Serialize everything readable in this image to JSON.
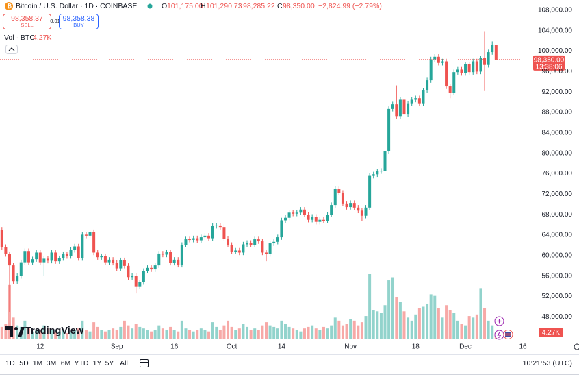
{
  "chart_data": {
    "type": "candlestick",
    "title": "Bitcoin / U.S. Dollar · 1D · COINBASE",
    "ohlc_legend": [
      {
        "key": "O",
        "value": "101,175.00"
      },
      {
        "key": "H",
        "value": "101,290.73"
      },
      {
        "key": "L",
        "value": "98,285.22"
      },
      {
        "key": "C",
        "value": "98,350.00"
      }
    ],
    "change": "−2,824.99 (−2.79%)",
    "sell": {
      "price": "98,358.37",
      "label": "SELL"
    },
    "spread": "0.01",
    "buy": {
      "price": "98,358.38",
      "label": "BUY"
    },
    "volume_legend": {
      "name": "Vol · BTC",
      "value": "4.27K"
    },
    "categories": [
      null,
      null,
      null,
      null,
      null,
      null,
      null,
      null,
      null,
      null,
      "12",
      null,
      null,
      null,
      null,
      null,
      null,
      null,
      null,
      null,
      null,
      null,
      null,
      null,
      null,
      null,
      null,
      null,
      null,
      null,
      "Sep",
      null,
      null,
      null,
      null,
      null,
      null,
      null,
      null,
      null,
      null,
      null,
      null,
      null,
      null,
      "16",
      null,
      null,
      null,
      null,
      null,
      null,
      null,
      null,
      null,
      null,
      null,
      null,
      null,
      null,
      "Oct",
      null,
      null,
      null,
      null,
      null,
      null,
      null,
      null,
      null,
      null,
      null,
      null,
      "14",
      null,
      null,
      null,
      null,
      null,
      null,
      null,
      null,
      null,
      null,
      null,
      null,
      null,
      null,
      null,
      null,
      null,
      "Nov",
      null,
      null,
      null,
      null,
      null,
      null,
      null,
      null,
      null,
      null,
      null,
      null,
      null,
      null,
      null,
      null,
      "18",
      null,
      null,
      null,
      null,
      null,
      null,
      null,
      null,
      null,
      null,
      null,
      null,
      "Dec",
      null,
      null,
      null,
      null,
      null,
      null,
      null,
      null,
      null,
      null,
      null,
      null,
      null,
      null,
      "16",
      null,
      null
    ],
    "open": [
      65000,
      61700,
      60300,
      58100,
      55000,
      56000,
      58700,
      60900,
      58700,
      59300,
      60600,
      58700,
      59400,
      59000,
      60600,
      58900,
      59500,
      60300,
      59900,
      61100,
      61800,
      59500,
      64100,
      63900,
      64600,
      60600,
      59700,
      59900,
      58700,
      59200,
      58600,
      57500,
      59100,
      58000,
      55800,
      56100,
      54000,
      54800,
      57000,
      57600,
      57300,
      58100,
      60400,
      60200,
      60700,
      58600,
      59200,
      58200,
      62100,
      63200,
      63100,
      63400,
      63000,
      63600,
      63900,
      63400,
      65800,
      65900,
      65600,
      63300,
      62100,
      60800,
      61000,
      60600,
      62200,
      62500,
      62100,
      63200,
      62800,
      60600,
      60300,
      62400,
      62700,
      63600,
      66900,
      67400,
      68400,
      68200,
      68400,
      69000,
      68000,
      67000,
      67600,
      66600,
      67000,
      66800,
      68000,
      69900,
      73000,
      72300,
      70200,
      69500,
      70300,
      69400,
      68800,
      67800,
      69400,
      75600,
      75900,
      76500,
      76600,
      80400,
      88700,
      89600,
      87300,
      90500,
      87600,
      89800,
      90500,
      90800,
      89800,
      92300,
      94300,
      98400,
      98900,
      97700,
      98000,
      93100,
      91900,
      95900,
      96400,
      95700,
      97400,
      95900,
      98000,
      96000,
      98600,
      97300,
      99800,
      101175,
      null,
      null,
      null,
      null,
      null,
      null,
      null,
      null,
      null
    ],
    "high": [
      65600,
      62200,
      60800,
      58600,
      56500,
      59200,
      61400,
      61400,
      59800,
      61100,
      61100,
      59900,
      59900,
      61100,
      61100,
      60000,
      60800,
      60800,
      61600,
      62300,
      62300,
      64600,
      64600,
      65100,
      65100,
      61100,
      60400,
      60400,
      59700,
      59700,
      59100,
      59600,
      59600,
      58500,
      56600,
      56600,
      55300,
      57500,
      58100,
      58100,
      58600,
      60900,
      60900,
      61200,
      61200,
      59700,
      59700,
      62600,
      63700,
      63700,
      63900,
      63900,
      64100,
      64400,
      64400,
      66300,
      66400,
      66400,
      66100,
      63800,
      62600,
      61500,
      61500,
      62700,
      63000,
      63000,
      63700,
      63700,
      63300,
      61100,
      62900,
      63200,
      64100,
      67400,
      67900,
      68900,
      68900,
      68900,
      69500,
      69500,
      68500,
      68100,
      68100,
      67500,
      67500,
      68500,
      70400,
      73600,
      73500,
      72800,
      70700,
      70800,
      70800,
      69900,
      69300,
      69900,
      76100,
      76400,
      77000,
      77100,
      80900,
      89200,
      90100,
      93300,
      91000,
      91000,
      90300,
      91000,
      91300,
      91300,
      92800,
      94800,
      98900,
      99400,
      99400,
      98500,
      98500,
      93600,
      96400,
      96900,
      96900,
      97900,
      97900,
      98500,
      98500,
      99100,
      103900,
      100300,
      101900,
      101290.73,
      null,
      null,
      null,
      null,
      null,
      null,
      null,
      null,
      null
    ],
    "low": [
      61200,
      59800,
      49000,
      54500,
      54500,
      55500,
      58200,
      58200,
      58200,
      58800,
      58200,
      56100,
      58500,
      58500,
      58400,
      58400,
      59000,
      59400,
      59400,
      60600,
      59000,
      59000,
      63400,
      63400,
      60100,
      59200,
      59200,
      58200,
      58200,
      58100,
      57000,
      57000,
      57500,
      55300,
      55300,
      52600,
      53500,
      54300,
      56500,
      56800,
      56800,
      57600,
      59700,
      59700,
      58100,
      58100,
      57700,
      57700,
      61600,
      62600,
      62600,
      62500,
      62500,
      63100,
      62900,
      62900,
      65300,
      65100,
      62800,
      61600,
      60300,
      60300,
      60100,
      60100,
      61700,
      61600,
      61600,
      62300,
      60100,
      58900,
      59800,
      61900,
      62200,
      63100,
      66400,
      66900,
      67700,
      67700,
      67900,
      67500,
      66500,
      66500,
      66100,
      66100,
      66300,
      66300,
      67500,
      69400,
      71800,
      69700,
      69000,
      69000,
      68900,
      68300,
      66800,
      67300,
      68900,
      75100,
      75400,
      76000,
      76100,
      79900,
      88200,
      86800,
      86800,
      87100,
      87100,
      89300,
      90000,
      89300,
      89300,
      91800,
      93800,
      97900,
      97200,
      97200,
      92600,
      90800,
      91400,
      95400,
      95200,
      95200,
      95400,
      95400,
      95500,
      95500,
      92200,
      96800,
      99300,
      98285.22,
      null,
      null,
      null,
      null,
      null,
      null,
      null,
      null,
      null
    ],
    "close": [
      61700,
      60300,
      58100,
      55000,
      56000,
      58700,
      60900,
      58700,
      59300,
      60600,
      58700,
      59400,
      59000,
      60600,
      58900,
      59500,
      60300,
      59900,
      61100,
      61800,
      59500,
      64100,
      63900,
      64600,
      60600,
      59700,
      59900,
      58700,
      59200,
      58600,
      57500,
      59100,
      58000,
      55800,
      56100,
      54000,
      54800,
      57000,
      57600,
      57300,
      58100,
      60400,
      60200,
      60700,
      58600,
      59200,
      58200,
      62100,
      63200,
      63100,
      63400,
      63000,
      63600,
      63900,
      63400,
      65800,
      65900,
      65600,
      63300,
      62100,
      60800,
      61000,
      60600,
      62200,
      62500,
      62100,
      63200,
      62800,
      60600,
      60300,
      62400,
      62700,
      63600,
      66900,
      67400,
      68400,
      68200,
      68400,
      69000,
      68000,
      67000,
      67600,
      66600,
      67000,
      66800,
      68000,
      69900,
      73000,
      72300,
      70200,
      69500,
      70300,
      69400,
      68800,
      67800,
      69400,
      75600,
      75900,
      76500,
      76600,
      80400,
      88700,
      89600,
      87300,
      90500,
      87600,
      89800,
      90500,
      90800,
      89800,
      92300,
      94300,
      98400,
      98900,
      97700,
      98000,
      93100,
      91900,
      95900,
      96400,
      95700,
      97400,
      95900,
      98000,
      96000,
      98600,
      97300,
      99800,
      101175,
      98350,
      null,
      null,
      null,
      null,
      null,
      null,
      null,
      null,
      null
    ],
    "volume": [
      8,
      10,
      35,
      14,
      9,
      8,
      12,
      7,
      5,
      6,
      6,
      9,
      7,
      6,
      5,
      5,
      6,
      4,
      5,
      6,
      7,
      12,
      6,
      5,
      11,
      8,
      6,
      5,
      6,
      7,
      6,
      8,
      12,
      9,
      7,
      10,
      8,
      7,
      6,
      5,
      6,
      9,
      7,
      6,
      8,
      6,
      5,
      12,
      7,
      6,
      5,
      6,
      7,
      6,
      5,
      11,
      8,
      6,
      9,
      12,
      8,
      6,
      7,
      10,
      8,
      6,
      7,
      6,
      9,
      11,
      9,
      8,
      7,
      12,
      10,
      8,
      7,
      6,
      5,
      7,
      8,
      9,
      7,
      6,
      8,
      7,
      9,
      14,
      12,
      9,
      10,
      13,
      12,
      9,
      11,
      15,
      42,
      19,
      18,
      17,
      22,
      38,
      40,
      27,
      24,
      18,
      14,
      12,
      16,
      20,
      21,
      23,
      29,
      28,
      20,
      14,
      22,
      19,
      17,
      12,
      10,
      9,
      15,
      14,
      16,
      33,
      20,
      12,
      9,
      4.27,
      null,
      null,
      null,
      null,
      null,
      null,
      null,
      null,
      null
    ],
    "volume_label": "4.27K",
    "last_price_label": "98,350.00",
    "countdown": "13:38:06",
    "ylim": [
      43500,
      110000
    ],
    "yticks": [
      {
        "value": 48000,
        "label": "48,000.00"
      },
      {
        "value": 52000,
        "label": "52,000.00"
      },
      {
        "value": 56000,
        "label": "56,000.00"
      },
      {
        "value": 60000,
        "label": "60,000.00"
      },
      {
        "value": 64000,
        "label": "64,000.00"
      },
      {
        "value": 68000,
        "label": "68,000.00"
      },
      {
        "value": 72000,
        "label": "72,000.00"
      },
      {
        "value": 76000,
        "label": "76,000.00"
      },
      {
        "value": 80000,
        "label": "80,000.00"
      },
      {
        "value": 84000,
        "label": "84,000.00"
      },
      {
        "value": 88000,
        "label": "88,000.00"
      },
      {
        "value": 92000,
        "label": "92,000.00"
      },
      {
        "value": 96000,
        "label": "96,000.00"
      },
      {
        "value": 100000,
        "label": "100,000.00"
      },
      {
        "value": 104000,
        "label": "104,000.00"
      },
      {
        "value": 108000,
        "label": "108,000.00"
      }
    ],
    "grid": false,
    "up_color": "#26a69a",
    "down_color": "#ef5350",
    "volume_up_color": "#92d3cc",
    "volume_down_color": "#f7a9a7"
  },
  "toolbar": {
    "ranges": [
      "1D",
      "5D",
      "1M",
      "3M",
      "6M",
      "YTD",
      "1Y",
      "5Y",
      "All"
    ],
    "clock": "10:21:53 (UTC)"
  },
  "logo": "TradingView"
}
